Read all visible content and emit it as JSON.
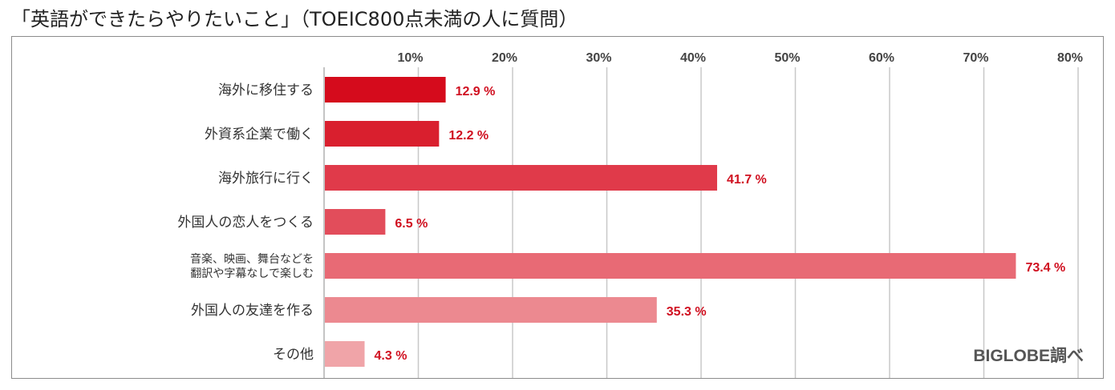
{
  "title": "「英語ができたらやりたいこと」（TOEIC800点未満の人に質問）",
  "credit": "BIGLOBE調べ",
  "chart_data": {
    "type": "bar",
    "orientation": "horizontal",
    "categories": [
      [
        "海外に移住する"
      ],
      [
        "外資系企業で働く"
      ],
      [
        "海外旅行に行く"
      ],
      [
        "外国人の恋人をつくる"
      ],
      [
        "音楽、映画、舞台などを",
        "翻訳や字幕なしで楽しむ"
      ],
      [
        "外国人の友達を作る"
      ],
      [
        "その他"
      ]
    ],
    "values": [
      12.9,
      12.2,
      41.7,
      6.5,
      73.4,
      35.3,
      4.3
    ],
    "value_labels": [
      "12.9 %",
      "12.2 %",
      "41.7 %",
      "6.5 %",
      "73.4 %",
      "35.3 %",
      "4.3 %"
    ],
    "bar_colors": [
      "#d50b1c",
      "#d91f2e",
      "#e03a4a",
      "#e24d5b",
      "#e86a75",
      "#ec8990",
      "#f0a4a8"
    ],
    "xlim": [
      0,
      80
    ],
    "xticks": [
      10,
      20,
      30,
      40,
      50,
      60,
      70,
      80
    ],
    "xtick_labels": [
      "10%",
      "20%",
      "30%",
      "40%",
      "50%",
      "60%",
      "70%",
      "80%"
    ],
    "grid": true,
    "xlabel": "",
    "ylabel": ""
  }
}
